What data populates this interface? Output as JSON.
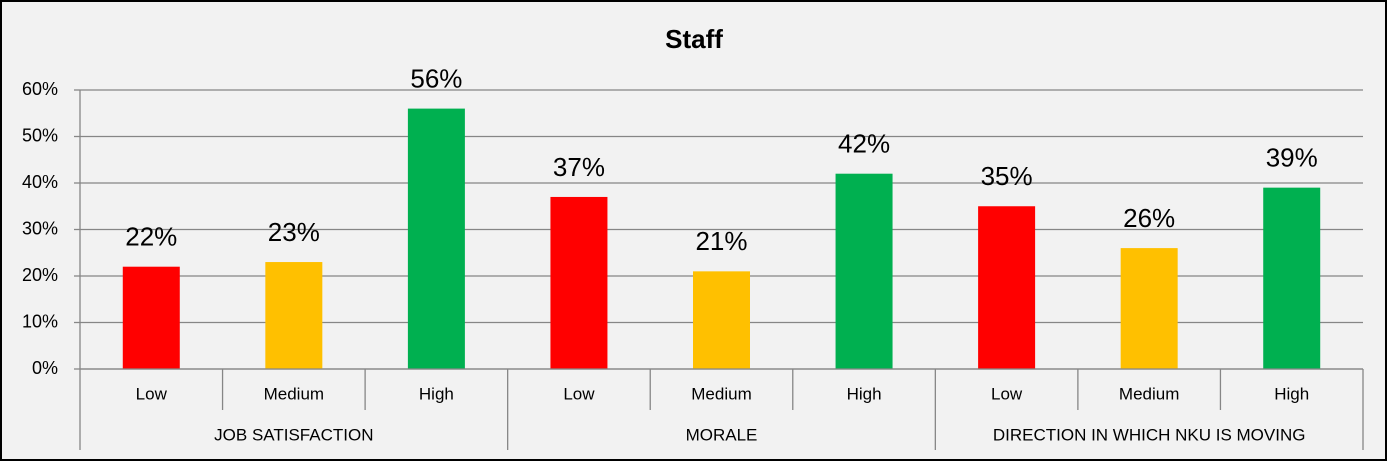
{
  "chart_data": {
    "type": "bar",
    "title": "Staff",
    "groups": [
      {
        "name": "JOB SATISFACTION",
        "categories": [
          "Low",
          "Medium",
          "High"
        ],
        "values": [
          22,
          23,
          56
        ],
        "value_labels": [
          "22%",
          "23%",
          "56%"
        ]
      },
      {
        "name": "MORALE",
        "categories": [
          "Low",
          "Medium",
          "High"
        ],
        "values": [
          37,
          21,
          42
        ],
        "value_labels": [
          "37%",
          "21%",
          "42%"
        ]
      },
      {
        "name": "DIRECTION IN WHICH NKU IS MOVING",
        "categories": [
          "Low",
          "Medium",
          "High"
        ],
        "values": [
          35,
          26,
          39
        ],
        "value_labels": [
          "35%",
          "26%",
          "39%"
        ]
      }
    ],
    "colors": [
      "#ff0000",
      "#ffc000",
      "#00b050"
    ],
    "ylim": [
      0,
      60
    ],
    "yticks": [
      {
        "value": 0,
        "label": "0%"
      },
      {
        "value": 10,
        "label": "10%"
      },
      {
        "value": 20,
        "label": "20%"
      },
      {
        "value": 30,
        "label": "30%"
      },
      {
        "value": 40,
        "label": "40%"
      },
      {
        "value": 50,
        "label": "50%"
      },
      {
        "value": 60,
        "label": "60%"
      }
    ],
    "grid": true
  }
}
